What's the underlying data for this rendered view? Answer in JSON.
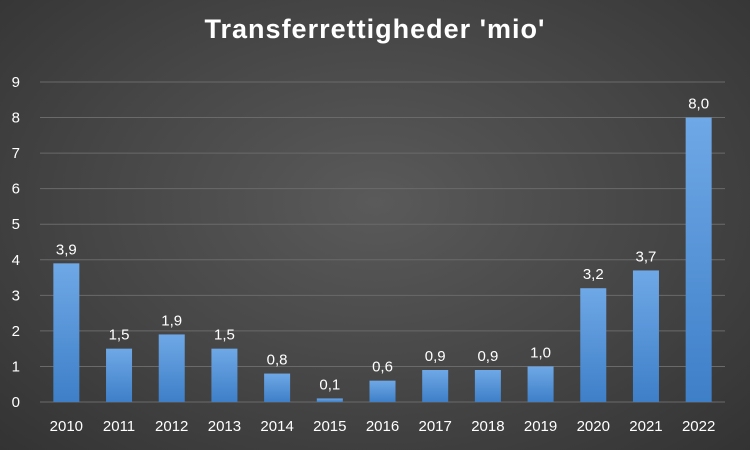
{
  "chart_data": {
    "type": "bar",
    "title": "Transferrettigheder 'mio'",
    "xlabel": "",
    "ylabel": "",
    "categories": [
      "2010",
      "2011",
      "2012",
      "2013",
      "2014",
      "2015",
      "2016",
      "2017",
      "2018",
      "2019",
      "2020",
      "2021",
      "2022"
    ],
    "values": [
      3.9,
      1.5,
      1.9,
      1.5,
      0.8,
      0.1,
      0.6,
      0.9,
      0.9,
      1.0,
      3.2,
      3.7,
      8.0
    ],
    "data_labels": [
      "3,9",
      "1,5",
      "1,9",
      "1,5",
      "0,8",
      "0,1",
      "0,6",
      "0,9",
      "0,9",
      "1,0",
      "3,2",
      "3,7",
      "8,0"
    ],
    "yticks": [
      "0",
      "1",
      "2",
      "3",
      "4",
      "5",
      "6",
      "7",
      "8",
      "9"
    ],
    "ylim": [
      0,
      9
    ],
    "grid": true,
    "legend": "none",
    "colors": {
      "bar_top": "#6fa8e6",
      "bar_bottom": "#3e7fc8",
      "grid": "#6a6a6a"
    }
  }
}
